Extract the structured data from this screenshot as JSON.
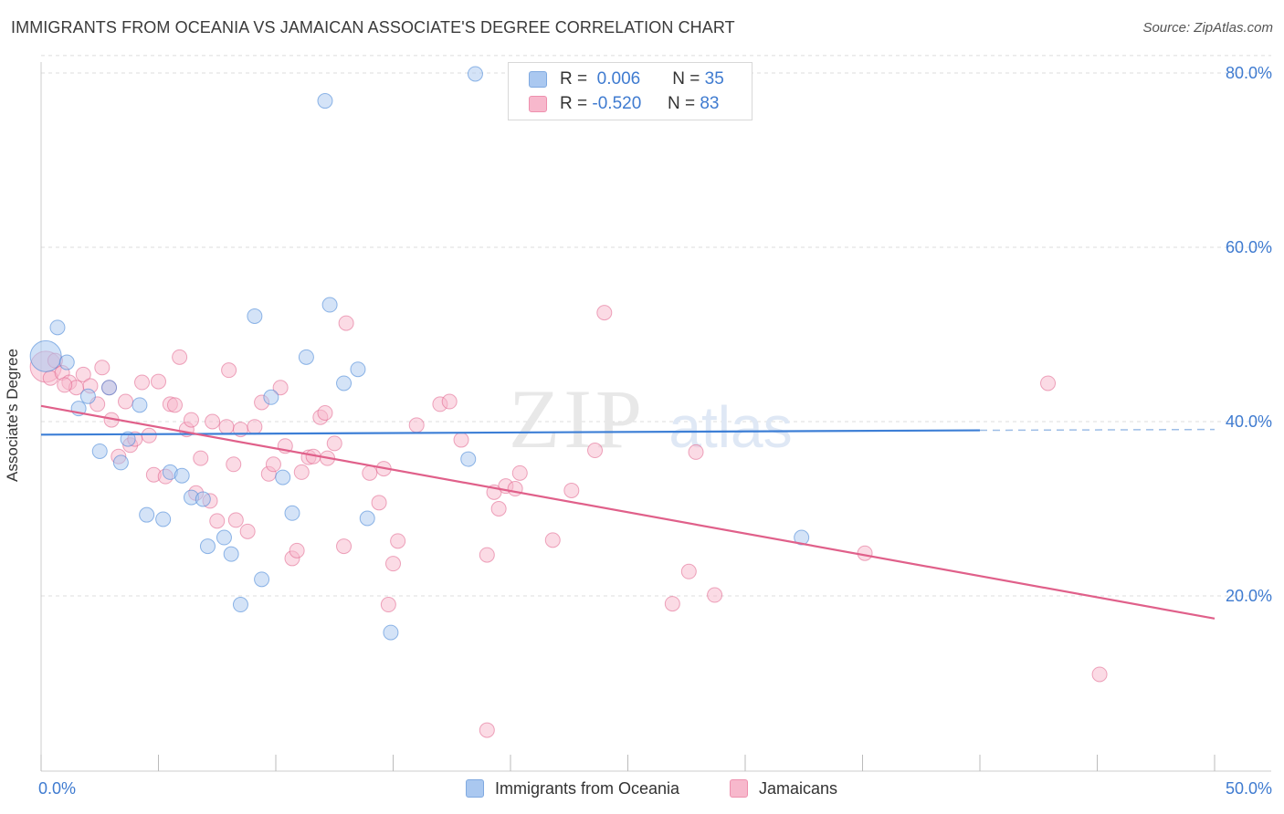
{
  "title": "IMMIGRANTS FROM OCEANIA VS JAMAICAN ASSOCIATE'S DEGREE CORRELATION CHART",
  "source": "Source: ZipAtlas.com",
  "watermark": {
    "zip": "ZIP",
    "atlas": "atlas"
  },
  "legend": {
    "rows": [
      {
        "r_label": "R =",
        "r_value": "0.006",
        "n_label": "N =",
        "n_value": "35",
        "color": "#aac8f0"
      },
      {
        "r_label": "R =",
        "r_value": "-0.520",
        "n_label": "N =",
        "n_value": "83",
        "color": "#f7b8cc"
      }
    ]
  },
  "bottom_legend": [
    {
      "label": "Immigrants from Oceania",
      "color": "#aac8f0"
    },
    {
      "label": "Jamaicans",
      "color": "#f7b8cc"
    }
  ],
  "chart_data": {
    "type": "scatter",
    "title": "IMMIGRANTS FROM OCEANIA VS JAMAICAN ASSOCIATE'S DEGREE CORRELATION CHART",
    "xlabel": "",
    "ylabel": "Associate's Degree",
    "xlim": [
      0,
      50
    ],
    "ylim": [
      0,
      82
    ],
    "x_tick_labels": [
      "0.0%",
      "50.0%"
    ],
    "y_ticks": [
      20,
      40,
      60,
      80
    ],
    "y_tick_labels": [
      "20.0%",
      "40.0%",
      "60.0%",
      "80.0%"
    ],
    "grid": "horizontal dashed",
    "legend_position": "top-center",
    "series": [
      {
        "name": "Immigrants from Oceania",
        "color": "#3d7fd6",
        "fill": "#aac8f0",
        "trend": {
          "x0": 0,
          "y0": 38.5,
          "x1": 40,
          "y1": 39.0,
          "dashed_to": 50,
          "dashed_y": 39.1
        },
        "points": [
          [
            0.2,
            47.5,
            "large"
          ],
          [
            0.7,
            50.8
          ],
          [
            1.1,
            46.8
          ],
          [
            1.6,
            41.5
          ],
          [
            2.0,
            42.9
          ],
          [
            2.5,
            36.6
          ],
          [
            2.9,
            43.9
          ],
          [
            3.4,
            35.3
          ],
          [
            3.7,
            38.0
          ],
          [
            4.2,
            41.9
          ],
          [
            4.5,
            29.3
          ],
          [
            5.2,
            28.8
          ],
          [
            5.5,
            34.2
          ],
          [
            6.0,
            33.8
          ],
          [
            6.4,
            31.3
          ],
          [
            6.9,
            31.1
          ],
          [
            7.1,
            25.7
          ],
          [
            7.8,
            26.7
          ],
          [
            8.1,
            24.8
          ],
          [
            8.5,
            19.0
          ],
          [
            9.1,
            52.1
          ],
          [
            9.4,
            21.9
          ],
          [
            9.8,
            42.8
          ],
          [
            10.3,
            33.6
          ],
          [
            10.7,
            29.5
          ],
          [
            11.3,
            47.4
          ],
          [
            12.1,
            76.8
          ],
          [
            12.3,
            53.4
          ],
          [
            12.9,
            44.4
          ],
          [
            13.5,
            46.0
          ],
          [
            13.9,
            28.9
          ],
          [
            14.9,
            15.8
          ],
          [
            18.2,
            35.7
          ],
          [
            18.5,
            79.9
          ],
          [
            32.4,
            26.7
          ]
        ]
      },
      {
        "name": "Jamaicans",
        "color": "#e0608a",
        "fill": "#f7b8cc",
        "trend": {
          "x0": 0,
          "y0": 41.8,
          "x1": 50,
          "y1": 17.4
        },
        "points": [
          [
            0.2,
            46.3,
            "large"
          ],
          [
            0.4,
            45.0
          ],
          [
            0.6,
            47.0
          ],
          [
            0.9,
            45.6
          ],
          [
            1.2,
            44.5
          ],
          [
            1.5,
            43.9
          ],
          [
            1.8,
            45.4
          ],
          [
            2.1,
            44.1
          ],
          [
            2.4,
            42.0
          ],
          [
            2.6,
            46.2
          ],
          [
            3.0,
            40.2
          ],
          [
            3.3,
            36.0
          ],
          [
            3.6,
            42.3
          ],
          [
            3.8,
            37.3
          ],
          [
            4.0,
            38.0
          ],
          [
            4.3,
            44.5
          ],
          [
            4.6,
            38.4
          ],
          [
            4.8,
            33.9
          ],
          [
            5.0,
            44.6
          ],
          [
            5.3,
            33.7
          ],
          [
            5.5,
            42.0
          ],
          [
            5.7,
            41.9
          ],
          [
            5.9,
            47.4
          ],
          [
            6.2,
            39.1
          ],
          [
            6.4,
            40.2
          ],
          [
            6.6,
            31.8
          ],
          [
            6.8,
            35.8
          ],
          [
            7.2,
            30.9
          ],
          [
            7.3,
            40.0
          ],
          [
            7.5,
            28.6
          ],
          [
            7.9,
            39.4
          ],
          [
            8.0,
            45.9
          ],
          [
            8.2,
            35.1
          ],
          [
            8.5,
            39.1
          ],
          [
            8.8,
            27.4
          ],
          [
            9.1,
            39.4
          ],
          [
            9.4,
            42.2
          ],
          [
            9.7,
            34.0
          ],
          [
            9.9,
            35.1
          ],
          [
            10.2,
            43.9
          ],
          [
            10.4,
            37.2
          ],
          [
            10.7,
            24.3
          ],
          [
            10.9,
            25.2
          ],
          [
            11.1,
            34.2
          ],
          [
            11.4,
            35.9
          ],
          [
            11.6,
            36.0
          ],
          [
            11.9,
            40.5
          ],
          [
            12.1,
            41.0
          ],
          [
            12.5,
            37.5
          ],
          [
            12.9,
            25.7
          ],
          [
            13.0,
            51.3
          ],
          [
            14.0,
            34.1
          ],
          [
            14.4,
            30.7
          ],
          [
            14.6,
            34.6
          ],
          [
            14.8,
            19.0
          ],
          [
            15.0,
            23.7
          ],
          [
            15.2,
            26.3
          ],
          [
            16.0,
            39.6
          ],
          [
            17.0,
            42.0
          ],
          [
            17.4,
            42.3
          ],
          [
            17.9,
            37.9
          ],
          [
            19.0,
            24.7
          ],
          [
            19.3,
            31.9
          ],
          [
            19.5,
            30.0
          ],
          [
            19.8,
            32.6
          ],
          [
            20.2,
            32.3
          ],
          [
            20.4,
            34.1
          ],
          [
            21.8,
            26.4
          ],
          [
            22.6,
            32.1
          ],
          [
            23.6,
            36.7
          ],
          [
            24.0,
            52.5
          ],
          [
            26.9,
            19.1
          ],
          [
            27.6,
            22.8
          ],
          [
            27.9,
            36.5
          ],
          [
            28.7,
            20.1
          ],
          [
            35.1,
            24.9
          ],
          [
            42.9,
            44.4
          ],
          [
            45.1,
            11.0
          ],
          [
            19.0,
            4.6
          ],
          [
            8.3,
            28.7
          ],
          [
            12.2,
            35.8
          ],
          [
            2.9,
            43.9
          ],
          [
            1.0,
            44.2
          ]
        ]
      }
    ]
  }
}
